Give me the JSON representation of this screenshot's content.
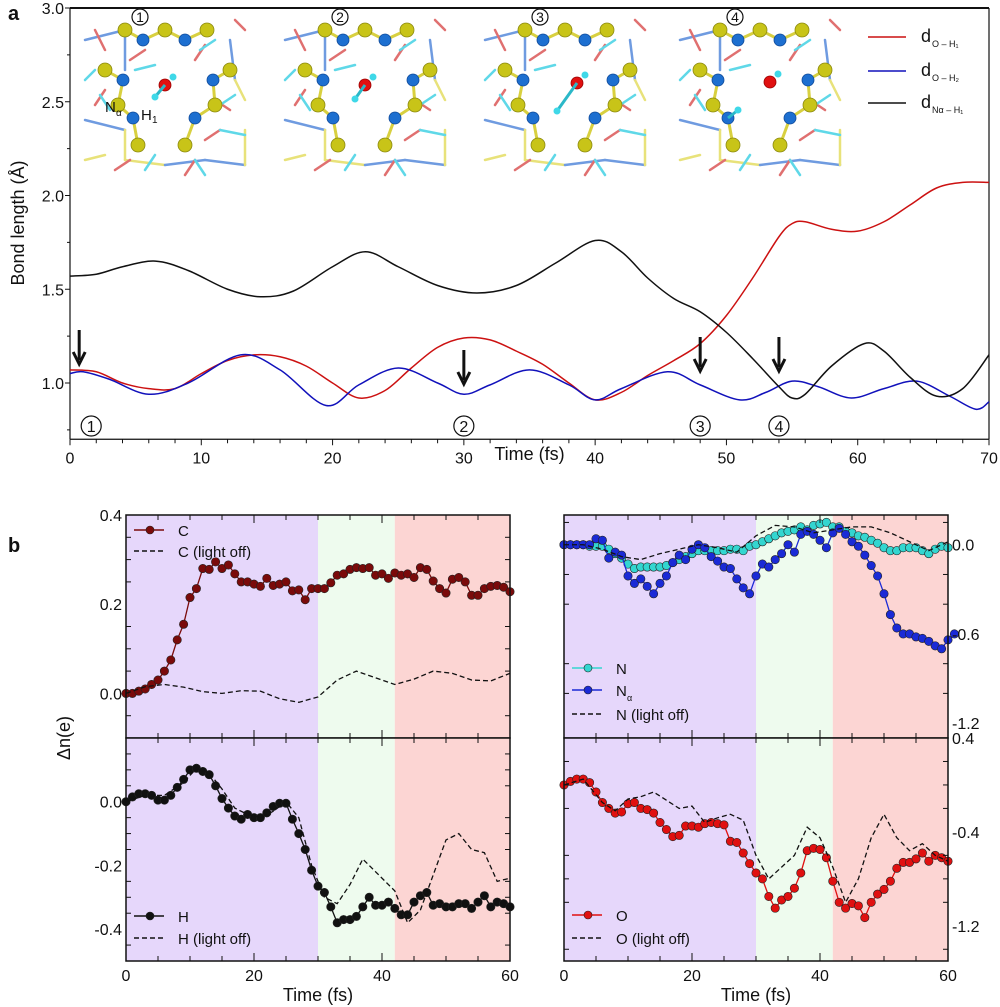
{
  "chart_data": [
    {
      "panel": "a",
      "type": "line",
      "xlabel": "Time (fs)",
      "ylabel": "Bond length (Å)",
      "xlim": [
        0,
        70
      ],
      "ylim": [
        0.7,
        3.0
      ],
      "xticks": [
        0,
        10,
        20,
        30,
        40,
        50,
        60,
        70
      ],
      "yticks": [
        1.0,
        1.5,
        2.0,
        2.5,
        3.0
      ],
      "ytick_labels": [
        "1.0",
        "1.5",
        "2.0",
        "2.5",
        "3.0"
      ],
      "legend_position": "top-right",
      "series": [
        {
          "name": "d_O-H1",
          "label_main": "d",
          "label_sub": "O – H₁",
          "color": "#cc1111",
          "x": [
            0,
            2,
            4,
            6,
            8,
            10,
            12,
            14,
            16,
            18,
            20,
            22,
            24,
            26,
            28,
            30,
            32,
            34,
            36,
            38,
            40,
            42,
            44,
            46,
            48,
            50,
            52,
            54,
            55,
            56,
            58,
            60,
            62,
            64,
            66,
            68,
            70
          ],
          "y": [
            1.07,
            1.06,
            1.0,
            0.97,
            0.97,
            1.05,
            1.12,
            1.15,
            1.14,
            1.09,
            1.0,
            0.92,
            0.96,
            1.08,
            1.19,
            1.24,
            1.23,
            1.17,
            1.1,
            1.0,
            0.91,
            0.95,
            1.04,
            1.12,
            1.21,
            1.36,
            1.56,
            1.78,
            1.85,
            1.86,
            1.82,
            1.81,
            1.86,
            1.95,
            2.04,
            2.07,
            2.07
          ]
        },
        {
          "name": "d_O-H2",
          "label_main": "d",
          "label_sub": "O – H₂",
          "color": "#1111bb",
          "x": [
            0,
            1,
            3,
            6,
            9,
            13,
            16,
            19.5,
            22,
            25,
            28,
            30,
            32,
            35,
            38,
            40,
            42,
            45.5,
            48,
            51,
            53,
            55,
            57,
            59.5,
            62,
            64.5,
            67,
            69,
            70
          ],
          "y": [
            1.05,
            1.06,
            1.02,
            0.94,
            1.0,
            1.15,
            1.07,
            0.88,
            0.99,
            1.08,
            1.0,
            0.94,
            0.99,
            1.07,
            0.99,
            0.91,
            0.97,
            1.06,
            0.99,
            0.91,
            0.95,
            1.01,
            0.98,
            0.92,
            0.97,
            1.01,
            0.93,
            0.86,
            0.9
          ]
        },
        {
          "name": "d_Nα-H1",
          "label_main": "d",
          "label_sub": "Nα – H₁",
          "color": "#111111",
          "x": [
            0,
            2,
            4,
            6.5,
            9,
            12,
            14.5,
            17,
            20,
            22.5,
            25,
            28,
            31,
            34,
            37,
            40,
            42,
            44,
            46,
            48,
            50,
            52,
            54,
            55,
            56,
            58,
            60.5,
            62,
            64,
            66,
            68,
            70
          ],
          "y": [
            1.57,
            1.58,
            1.62,
            1.65,
            1.6,
            1.5,
            1.46,
            1.49,
            1.62,
            1.7,
            1.62,
            1.52,
            1.48,
            1.52,
            1.64,
            1.76,
            1.7,
            1.56,
            1.45,
            1.38,
            1.27,
            1.13,
            0.98,
            0.92,
            0.94,
            1.09,
            1.21,
            1.17,
            1.03,
            0.93,
            0.97,
            1.15
          ]
        }
      ],
      "annotations": [
        {
          "label": "①",
          "x": 0.7,
          "arrow": true
        },
        {
          "label": "②",
          "x": 30,
          "arrow": true
        },
        {
          "label": "③",
          "x": 48,
          "arrow": true
        },
        {
          "label": "④",
          "x": 54,
          "arrow": true
        }
      ],
      "inset_labels": {
        "frames": [
          "①",
          "②",
          "③",
          "④"
        ],
        "atom_na": "Nα",
        "atom_h1": "H₁"
      }
    },
    {
      "panel": "b-top-left",
      "type": "line",
      "ylim": [
        -0.1,
        0.4
      ],
      "xlim": [
        0,
        60
      ],
      "yticks": [
        0.0,
        0.2,
        0.4
      ],
      "ytick_labels": [
        "0.0",
        "0.2",
        "0.4"
      ],
      "series": [
        {
          "name": "C",
          "color": "#7a0a0a",
          "markers": true,
          "y": [
            0.0,
            0.0,
            0.005,
            0.01,
            0.02,
            0.03,
            0.05,
            0.075,
            0.12,
            0.155,
            0.215,
            0.235,
            0.28,
            0.278,
            0.295,
            0.28,
            0.288,
            0.268,
            0.25,
            0.25,
            0.245,
            0.24,
            0.258,
            0.242,
            0.245,
            0.25,
            0.23,
            0.232,
            0.21,
            0.235,
            0.235,
            0.235,
            0.248,
            0.265,
            0.268,
            0.278,
            0.282,
            0.28,
            0.282,
            0.265,
            0.268,
            0.258,
            0.27,
            0.265,
            0.268,
            0.26,
            0.282,
            0.278,
            0.252,
            0.235,
            0.225,
            0.256,
            0.26,
            0.25,
            0.22,
            0.22,
            0.235,
            0.24,
            0.242,
            0.238,
            0.228
          ]
        },
        {
          "name": "C (light off)",
          "color": "#111111",
          "dashed": true,
          "x": [
            0,
            3,
            6,
            9,
            12,
            15,
            18,
            21,
            24,
            27,
            30,
            33,
            36,
            39,
            42,
            45,
            48,
            51,
            54,
            57,
            60
          ],
          "y": [
            0,
            0.015,
            0.02,
            0.014,
            0.004,
            0.0,
            0.006,
            0.005,
            -0.012,
            -0.02,
            -0.008,
            0.03,
            0.05,
            0.035,
            0.02,
            0.032,
            0.05,
            0.045,
            0.03,
            0.028,
            0.045
          ]
        }
      ]
    },
    {
      "panel": "b-bottom-left",
      "type": "line",
      "ylabel": "Δn(e)",
      "xlabel": "Time (fs)",
      "ylim": [
        -0.5,
        0.2
      ],
      "xlim": [
        0,
        60
      ],
      "xticks": [
        0,
        20,
        40,
        60
      ],
      "yticks": [
        0.0,
        -0.2,
        -0.4
      ],
      "ytick_labels": [
        "0.0",
        "-0.2",
        "-0.4"
      ],
      "series": [
        {
          "name": "H",
          "color": "#111111",
          "markers": true,
          "y": [
            0.0,
            0.015,
            0.025,
            0.025,
            0.02,
            0.005,
            0.005,
            0.02,
            0.045,
            0.07,
            0.1,
            0.105,
            0.095,
            0.085,
            0.05,
            0.01,
            -0.02,
            -0.045,
            -0.055,
            -0.04,
            -0.05,
            -0.05,
            -0.035,
            -0.015,
            -0.005,
            -0.005,
            -0.055,
            -0.1,
            -0.15,
            -0.215,
            -0.265,
            -0.285,
            -0.33,
            -0.38,
            -0.37,
            -0.37,
            -0.36,
            -0.33,
            -0.3,
            -0.325,
            -0.325,
            -0.315,
            -0.335,
            -0.355,
            -0.355,
            -0.315,
            -0.295,
            -0.285,
            -0.325,
            -0.32,
            -0.33,
            -0.33,
            -0.32,
            -0.32,
            -0.335,
            -0.315,
            -0.295,
            -0.33,
            -0.315,
            -0.32,
            -0.33
          ]
        },
        {
          "name": "H (light off)",
          "color": "#111111",
          "dashed": true,
          "x": [
            0,
            3,
            6,
            9,
            11,
            13,
            15,
            17,
            19,
            21,
            23,
            25,
            27,
            29,
            31,
            33,
            35,
            37,
            39,
            41,
            42,
            44,
            46,
            48,
            50,
            52,
            54,
            56,
            58,
            60
          ],
          "y": [
            0.0,
            0.02,
            0.02,
            0.06,
            0.105,
            0.09,
            0.04,
            -0.02,
            -0.04,
            -0.05,
            -0.03,
            0.0,
            -0.05,
            -0.2,
            -0.3,
            -0.32,
            -0.26,
            -0.18,
            -0.22,
            -0.26,
            -0.28,
            -0.38,
            -0.34,
            -0.23,
            -0.12,
            -0.1,
            -0.15,
            -0.16,
            -0.25,
            -0.24
          ]
        }
      ]
    },
    {
      "panel": "b-top-right",
      "type": "line",
      "ylim": [
        -1.3,
        0.2
      ],
      "xlim": [
        0,
        60
      ],
      "yticks": [
        0.0,
        -0.6,
        -1.2
      ],
      "ytick_labels": [
        "0.0",
        "-0.6",
        "-1.2"
      ],
      "yaxis_side": "right",
      "series": [
        {
          "name": "N",
          "color": "#33d6d0",
          "markers": true,
          "y": [
            0,
            0,
            0,
            0,
            -0.01,
            -0.01,
            -0.01,
            -0.03,
            -0.06,
            -0.09,
            -0.13,
            -0.16,
            -0.15,
            -0.15,
            -0.15,
            -0.15,
            -0.14,
            -0.12,
            -0.1,
            -0.08,
            -0.06,
            -0.04,
            -0.04,
            -0.04,
            -0.04,
            -0.04,
            -0.03,
            -0.03,
            -0.04,
            -0.01,
            0.0,
            0.02,
            0.04,
            0.06,
            0.08,
            0.09,
            0.1,
            0.12,
            0.1,
            0.13,
            0.14,
            0.15,
            0.12,
            0.12,
            0.09,
            0.08,
            0.06,
            0.05,
            0.03,
            0.01,
            -0.02,
            -0.04,
            -0.04,
            -0.02,
            -0.02,
            -0.02,
            -0.04,
            -0.06,
            -0.03,
            -0.01,
            -0.02
          ]
        },
        {
          "name": "Nα",
          "label_main": "N",
          "label_sub": "α",
          "color": "#1a2ad6",
          "markers": true,
          "y": [
            0,
            0,
            0,
            0,
            0,
            0.04,
            0.03,
            -0.09,
            -0.05,
            -0.07,
            -0.21,
            -0.26,
            -0.23,
            -0.28,
            -0.33,
            -0.26,
            -0.21,
            -0.12,
            -0.07,
            -0.1,
            -0.03,
            0.0,
            -0.02,
            -0.08,
            -0.11,
            -0.15,
            -0.16,
            -0.23,
            -0.29,
            -0.33,
            -0.21,
            -0.13,
            -0.15,
            -0.1,
            -0.06,
            0.0,
            -0.05,
            0.07,
            0.09,
            0.07,
            0.03,
            -0.02,
            0.08,
            0.11,
            0.07,
            0.02,
            -0.01,
            -0.07,
            -0.14,
            -0.21,
            -0.33,
            -0.47,
            -0.56,
            -0.6,
            -0.6,
            -0.62,
            -0.63,
            -0.65,
            -0.68,
            -0.7,
            -0.64,
            -0.6
          ]
        },
        {
          "name": "N (light off)",
          "color": "#111111",
          "dashed": true,
          "x": [
            0,
            3,
            6,
            9,
            12,
            15,
            18,
            21,
            24,
            27,
            30,
            33,
            36,
            39,
            42,
            45,
            48,
            51,
            54,
            57,
            60
          ],
          "y": [
            0,
            0,
            -0.03,
            -0.08,
            -0.1,
            -0.06,
            -0.03,
            0.0,
            -0.02,
            -0.05,
            0.06,
            0.13,
            0.12,
            0.08,
            0.1,
            0.12,
            0.12,
            0.08,
            0.02,
            -0.04,
            0.02
          ]
        }
      ]
    },
    {
      "panel": "b-bottom-right",
      "type": "line",
      "xlabel": "Time (fs)",
      "ylim": [
        -1.5,
        0.4
      ],
      "xlim": [
        0,
        60
      ],
      "xticks": [
        0,
        20,
        40,
        60
      ],
      "yticks": [
        0.4,
        -0.4,
        -1.2
      ],
      "ytick_labels": [
        "0.4",
        "-0.4",
        "-1.2"
      ],
      "yaxis_side": "right",
      "series": [
        {
          "name": "O",
          "color": "#e01010",
          "markers": true,
          "y": [
            0.0,
            0.03,
            0.05,
            0.05,
            0.02,
            -0.06,
            -0.15,
            -0.2,
            -0.24,
            -0.23,
            -0.16,
            -0.15,
            -0.2,
            -0.21,
            -0.24,
            -0.32,
            -0.38,
            -0.44,
            -0.43,
            -0.35,
            -0.35,
            -0.36,
            -0.33,
            -0.32,
            -0.33,
            -0.34,
            -0.48,
            -0.49,
            -0.58,
            -0.67,
            -0.75,
            -0.8,
            -0.95,
            -1.05,
            -0.98,
            -0.95,
            -0.88,
            -0.75,
            -0.56,
            -0.54,
            -0.55,
            -0.62,
            -0.82,
            -1.0,
            -1.05,
            -1.01,
            -1.03,
            -1.13,
            -1.0,
            -0.93,
            -0.89,
            -0.82,
            -0.71,
            -0.66,
            -0.66,
            -0.63,
            -0.58,
            -0.65,
            -0.6,
            -0.62,
            -0.65
          ]
        },
        {
          "name": "O (light off)",
          "color": "#111111",
          "dashed": true,
          "x": [
            0,
            3,
            6,
            8,
            10,
            12,
            14,
            16,
            18,
            20,
            22,
            24,
            26,
            28,
            30,
            32,
            34,
            36,
            38,
            40,
            42,
            44,
            46,
            48,
            50,
            52,
            54,
            56,
            58,
            60
          ],
          "y": [
            0.0,
            0.05,
            -0.15,
            -0.22,
            -0.12,
            -0.1,
            -0.06,
            -0.13,
            -0.2,
            -0.18,
            -0.32,
            -0.28,
            -0.25,
            -0.3,
            -0.6,
            -0.8,
            -0.7,
            -0.6,
            -0.36,
            -0.45,
            -0.7,
            -1.0,
            -0.8,
            -0.45,
            -0.25,
            -0.45,
            -0.56,
            -0.5,
            -0.6,
            -0.65
          ]
        }
      ]
    }
  ],
  "labels": {
    "panel_a": "a",
    "panel_b": "b",
    "c_legend": "C",
    "c_off_legend": "C (light off)",
    "h_legend": "H",
    "h_off_legend": "H (light off)",
    "n_legend": "N",
    "na_legend_main": "N",
    "na_legend_sub": "α",
    "n_off_legend": "N (light off)",
    "o_legend": "O",
    "o_off_legend": "O (light off)",
    "xlabel": "Time (fs)",
    "ylabel_b": "Δn(e)",
    "ylabel_a": "Bond length (Å)"
  },
  "phase_colors": {
    "phase1": "#e6d7fb",
    "phase2": "#eefbee",
    "phase3": "#fcd5d3"
  },
  "phase_bounds_fs": [
    0,
    30,
    42,
    60
  ]
}
